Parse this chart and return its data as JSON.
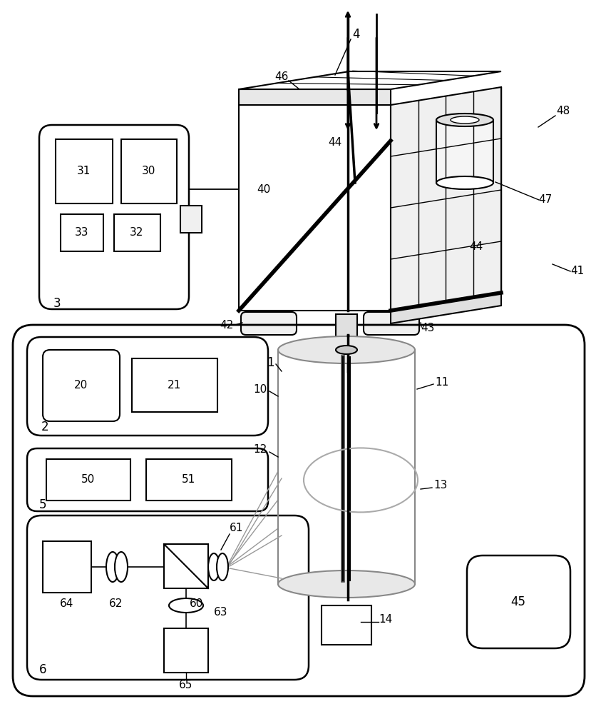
{
  "bg_color": "#ffffff",
  "line_color": "#000000",
  "gray_color": "#999999",
  "fig_width": 8.37,
  "fig_height": 10.0,
  "dpi": 100
}
